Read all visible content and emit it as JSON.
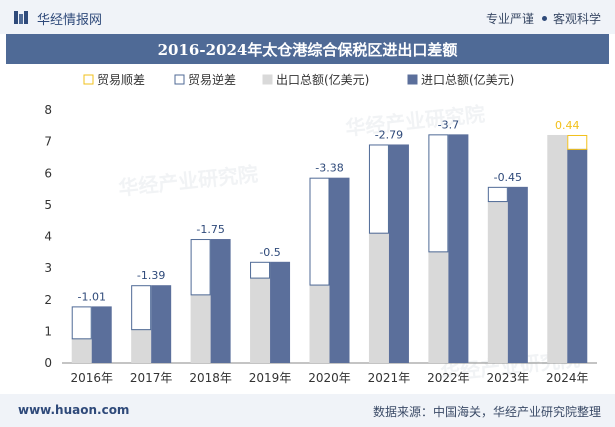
{
  "header": {
    "brand": "华经情报网",
    "tag1": "专业严谨",
    "tag2": "客观科学"
  },
  "footer": {
    "site": "www.huaon.com",
    "source": "数据来源：中国海关，华经产业研究院整理"
  },
  "watermark": {
    "cn": "华经产业研究院",
    "url": "www.huaon.com"
  },
  "colors": {
    "surplus": "#f2c01b",
    "deficit": "#4f6a96",
    "export": "#d9d9d9",
    "import": "#5b6f9b",
    "axis": "#333333",
    "label": "#2f4a7a"
  },
  "chart_data": {
    "type": "bar",
    "title": "2016-2024年太仓港综合保税区进出口差额",
    "categories": [
      "2016年",
      "2017年",
      "2018年",
      "2019年",
      "2020年",
      "2021年",
      "2022年",
      "2023年",
      "2024年"
    ],
    "ylim": [
      0,
      8
    ],
    "yticks": [
      "0",
      "1",
      "2",
      "3",
      "4",
      "5",
      "6",
      "7",
      "8"
    ],
    "legend": [
      "贸易顺差",
      "贸易逆差",
      "出口总额(亿美元)",
      "进口总额(亿美元)"
    ],
    "legend_position": "top",
    "series": [
      {
        "name": "出口总额(亿美元)",
        "values": [
          0.78,
          1.07,
          2.17,
          2.7,
          2.48,
          4.12,
          3.53,
          5.12,
          7.21
        ]
      },
      {
        "name": "进口总额(亿美元)",
        "values": [
          1.79,
          2.46,
          3.92,
          3.2,
          5.86,
          6.91,
          7.23,
          5.57,
          6.77
        ]
      }
    ],
    "balance_labels": [
      "-1.01",
      "-1.39",
      "-1.75",
      "-0.5",
      "-3.38",
      "-2.79",
      "-3.7",
      "-0.45",
      "0.44"
    ]
  }
}
